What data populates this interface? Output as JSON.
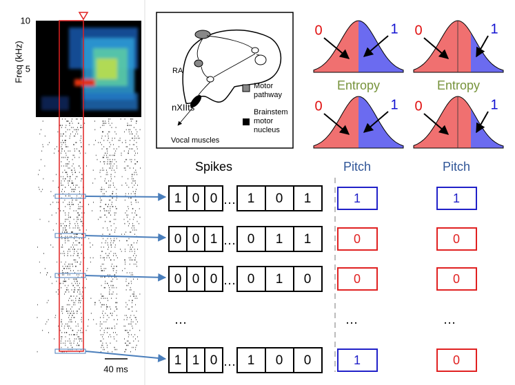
{
  "spectrogram": {
    "y_axis_label": "Freq (kHz)",
    "y_ticks": [
      "10",
      "5"
    ],
    "scale_bar": "40 ms"
  },
  "anatomy": {
    "labels": [
      "RA",
      "nXIIts",
      "Vocal muscles"
    ],
    "legend": [
      [
        "Motor",
        "pathway"
      ],
      [
        "Brainstem",
        "motor",
        "nucleus"
      ]
    ]
  },
  "distributions": [
    {
      "left": "0",
      "right": "1",
      "caption": "Entropy"
    },
    {
      "left": "0",
      "right": "1",
      "caption": "Entropy"
    },
    {
      "left": "0",
      "right": "1"
    },
    {
      "left": "0",
      "right": "1"
    }
  ],
  "table": {
    "headers": [
      "Spikes",
      "Pitch",
      "Pitch"
    ],
    "rows": [
      {
        "spikes_left": [
          "1",
          "0",
          "0"
        ],
        "ellipsis": "…",
        "spikes_right": [
          "1",
          "0",
          "1"
        ],
        "pitch": [
          "1",
          "1"
        ]
      },
      {
        "spikes_left": [
          "0",
          "0",
          "1"
        ],
        "ellipsis": "…",
        "spikes_right": [
          "0",
          "1",
          "1"
        ],
        "pitch": [
          "0",
          "0"
        ]
      },
      {
        "spikes_left": [
          "0",
          "0",
          "0"
        ],
        "ellipsis": "…",
        "spikes_right": [
          "0",
          "1",
          "0"
        ],
        "pitch": [
          "0",
          "0"
        ]
      },
      {
        "spikes_left": [
          "1",
          "1",
          "0"
        ],
        "ellipsis": "…",
        "spikes_right": [
          "1",
          "0",
          "0"
        ],
        "pitch": [
          "1",
          "0"
        ]
      }
    ],
    "gap_row": [
      "…",
      "…",
      "…"
    ]
  }
}
